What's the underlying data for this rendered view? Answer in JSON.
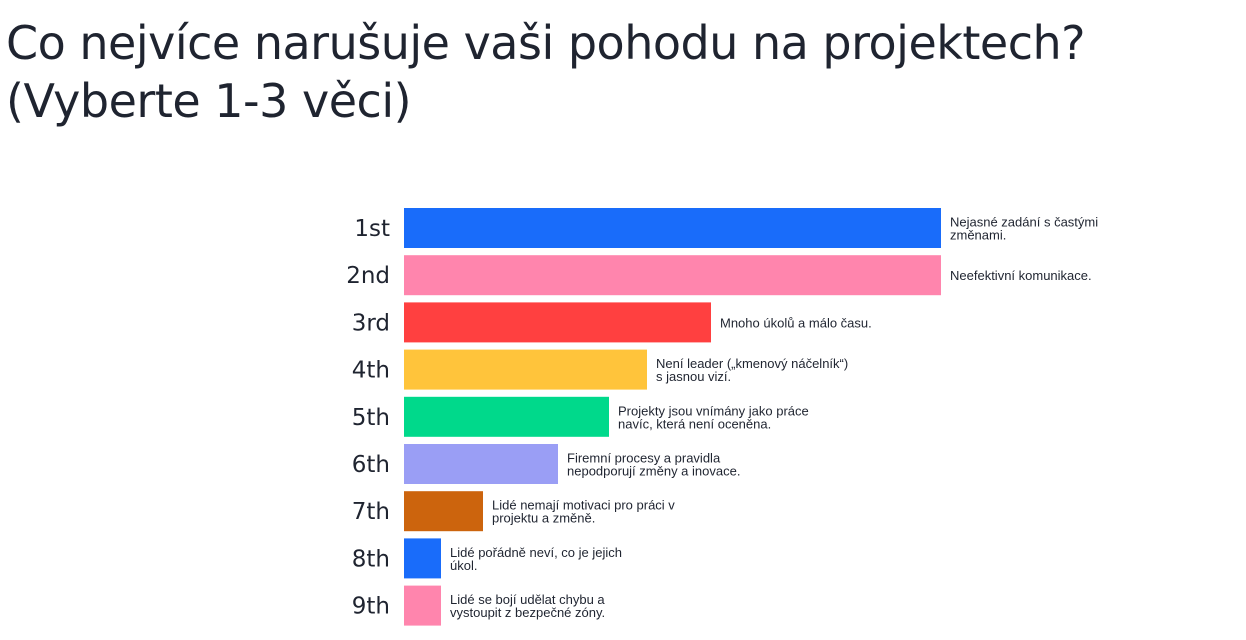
{
  "question": {
    "line1": "Co nejvíce narušuje vaši pohodu na projektech?",
    "line2": "(Vyberte 1-3 věci)"
  },
  "chart_data": {
    "type": "bar",
    "orientation": "horizontal",
    "title": "Co nejvíce narušuje vaši pohodu na projektech? (Vyberte 1-3 věci)",
    "rank_labels": [
      "1st",
      "2nd",
      "3rd",
      "4th",
      "5th",
      "6th",
      "7th",
      "8th",
      "9th"
    ],
    "categories": [
      "Nejasné zadání s častými změnami.",
      "Neefektivní komunikace.",
      "Mnoho úkolů a málo času.",
      "Není leader („kmenový náčelník“) s jasnou vizí.",
      "Projekty jsou vnímány jako práce navíc, která není oceněna.",
      "Firemní procesy a pravidla nepodporují změny a inovace.",
      "Lidé nemají motivaci pro práci v projektu a změně.",
      "Lidé pořádně neví, co je jejich úkol.",
      "Lidé se bojí udělat chybu a vystoupit z bezpečné zóny."
    ],
    "label_lines": [
      [
        "Nejasné zadání s častými",
        "změnami."
      ],
      [
        "Neefektivní komunikace."
      ],
      [
        "Mnoho úkolů a málo času."
      ],
      [
        "Není leader („kmenový náčelník“)",
        "s jasnou vizí."
      ],
      [
        "Projekty jsou vnímány jako práce",
        "navíc, která není oceněna."
      ],
      [
        "Firemní procesy a pravidla",
        "nepodporují změny a inovace."
      ],
      [
        "Lidé nemají motivaci pro práci v",
        "projektu a změně."
      ],
      [
        "Lidé pořádně neví, co je jejich",
        "úkol."
      ],
      [
        "Lidé se bojí udělat chybu a",
        "vystoupit z bezpečné zóny."
      ]
    ],
    "values": [
      1.0,
      1.0,
      0.572,
      0.452,
      0.382,
      0.286,
      0.148,
      0.069,
      0.069
    ],
    "value_scale": "relative to the longest bar",
    "colors": [
      "#196cfa",
      "#ff85ad",
      "#ff4040",
      "#ffc43b",
      "#00d98b",
      "#9a9ef5",
      "#cc640d",
      "#196cfa",
      "#ff85ad"
    ],
    "grid": false,
    "legend": "none"
  }
}
